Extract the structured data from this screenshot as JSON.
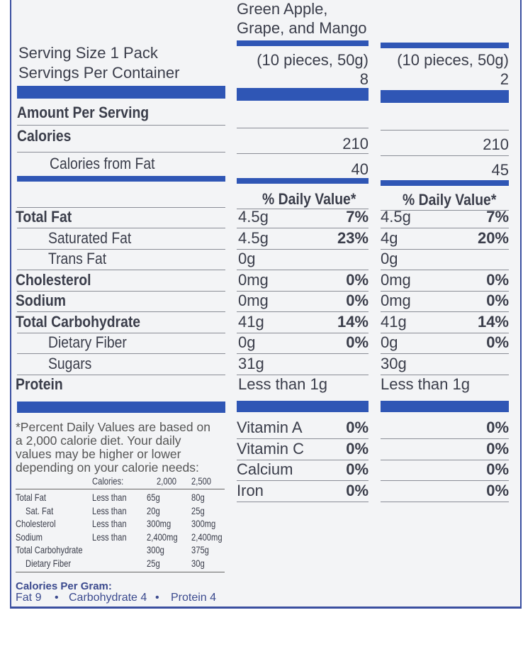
{
  "header": {
    "product_name_line1": "Green Apple,",
    "product_name_line2": "Grape, and Mango",
    "serving_size": "Serving Size 1 Pack",
    "servings_per_container": "Servings Per Container",
    "columns": [
      {
        "serving": "(10 pieces, 50g)",
        "servings": "8",
        "calories": "210",
        "calories_from_fat": "40"
      },
      {
        "serving": "(10 pieces, 50g)",
        "servings": "2",
        "calories": "210",
        "calories_from_fat": "45"
      }
    ]
  },
  "labels": {
    "amount_per_serving": "Amount Per Serving",
    "calories": "Calories",
    "calories_from_fat": "Calories from Fat",
    "daily_value": "% Daily Value*"
  },
  "nutrients": [
    {
      "name": "Total Fat",
      "c1_amount": "4.5g",
      "c1_dv": "7%",
      "c2_amount": "4.5g",
      "c2_dv": "7%"
    },
    {
      "name": "Saturated Fat",
      "c1_amount": "4.5g",
      "c1_dv": "23%",
      "c2_amount": "4g",
      "c2_dv": "20%"
    },
    {
      "name": "Trans Fat",
      "c1_amount": "0g",
      "c1_dv": "",
      "c2_amount": "0g",
      "c2_dv": ""
    },
    {
      "name": "Cholesterol",
      "c1_amount": "0mg",
      "c1_dv": "0%",
      "c2_amount": "0mg",
      "c2_dv": "0%"
    },
    {
      "name": "Sodium",
      "c1_amount": "0mg",
      "c1_dv": "0%",
      "c2_amount": "0mg",
      "c2_dv": "0%"
    },
    {
      "name": "Total Carbohydrate",
      "c1_amount": "41g",
      "c1_dv": "14%",
      "c2_amount": "41g",
      "c2_dv": "14%"
    },
    {
      "name": "Dietary Fiber",
      "c1_amount": "0g",
      "c1_dv": "0%",
      "c2_amount": "0g",
      "c2_dv": "0%"
    },
    {
      "name": "Sugars",
      "c1_amount": "31g",
      "c1_dv": "",
      "c2_amount": "30g",
      "c2_dv": ""
    },
    {
      "name": "Protein",
      "c1_amount": "Less than 1g",
      "c1_dv": "",
      "c2_amount": "Less than 1g",
      "c2_dv": ""
    }
  ],
  "vitamins": [
    {
      "name": "Vitamin A",
      "c1": "0%",
      "c2": "0%"
    },
    {
      "name": "Vitamin C",
      "c1": "0%",
      "c2": "0%"
    },
    {
      "name": "Calcium",
      "c1": "0%",
      "c2": "0%"
    },
    {
      "name": "Iron",
      "c1": "0%",
      "c2": "0%"
    }
  ],
  "footnote": {
    "lines": [
      "*Percent Daily Values are based on",
      "a 2,000 calorie diet. Your daily",
      "values may be higher or lower",
      "depending on your calorie needs:"
    ],
    "table_header": [
      "Calories:",
      "2,000",
      "2,500"
    ],
    "table": [
      [
        "Total Fat",
        "Less than",
        "65g",
        "80g"
      ],
      [
        "Sat. Fat",
        "Less than",
        "20g",
        "25g"
      ],
      [
        "Cholesterol",
        "Less than",
        "300mg",
        "300mg"
      ],
      [
        "Sodium",
        "Less than",
        "2,400mg",
        "2,400mg"
      ],
      [
        "Total Carbohydrate",
        "",
        "300g",
        "375g"
      ],
      [
        "Dietary Fiber",
        "",
        "25g",
        "30g"
      ]
    ],
    "cal_per_gram_title": "Calories Per Gram:",
    "cal_per_gram": [
      "Fat 9",
      "Carbohydrate 4",
      "Protein 4"
    ]
  },
  "colors": {
    "bar": "#2f56b5",
    "text": "#3a3d4a"
  }
}
